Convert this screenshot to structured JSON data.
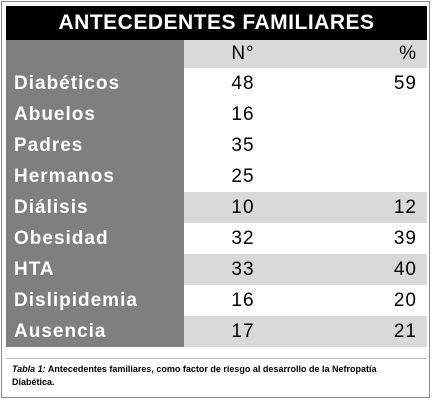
{
  "table": {
    "title": "ANTECEDENTES FAMILIARES",
    "columns": [
      "N°",
      "%"
    ],
    "rows": [
      [
        "Diabéticos",
        48,
        59
      ],
      [
        "Abuelos",
        16
      ],
      [
        "Padres",
        35
      ],
      [
        "Hermanos",
        25
      ],
      [
        "Diálisis",
        10,
        12
      ],
      [
        "Obesidad",
        32,
        39
      ],
      [
        "HTA",
        33,
        40
      ],
      [
        "Dislipidemia",
        16,
        20
      ],
      [
        "Ausencia",
        17,
        21
      ]
    ]
  },
  "caption": {
    "label": "Tabla 1:",
    "text": "Antecedentes familiares, como factor de riesgo al desarrollo de la Nefropatía Diabética."
  }
}
